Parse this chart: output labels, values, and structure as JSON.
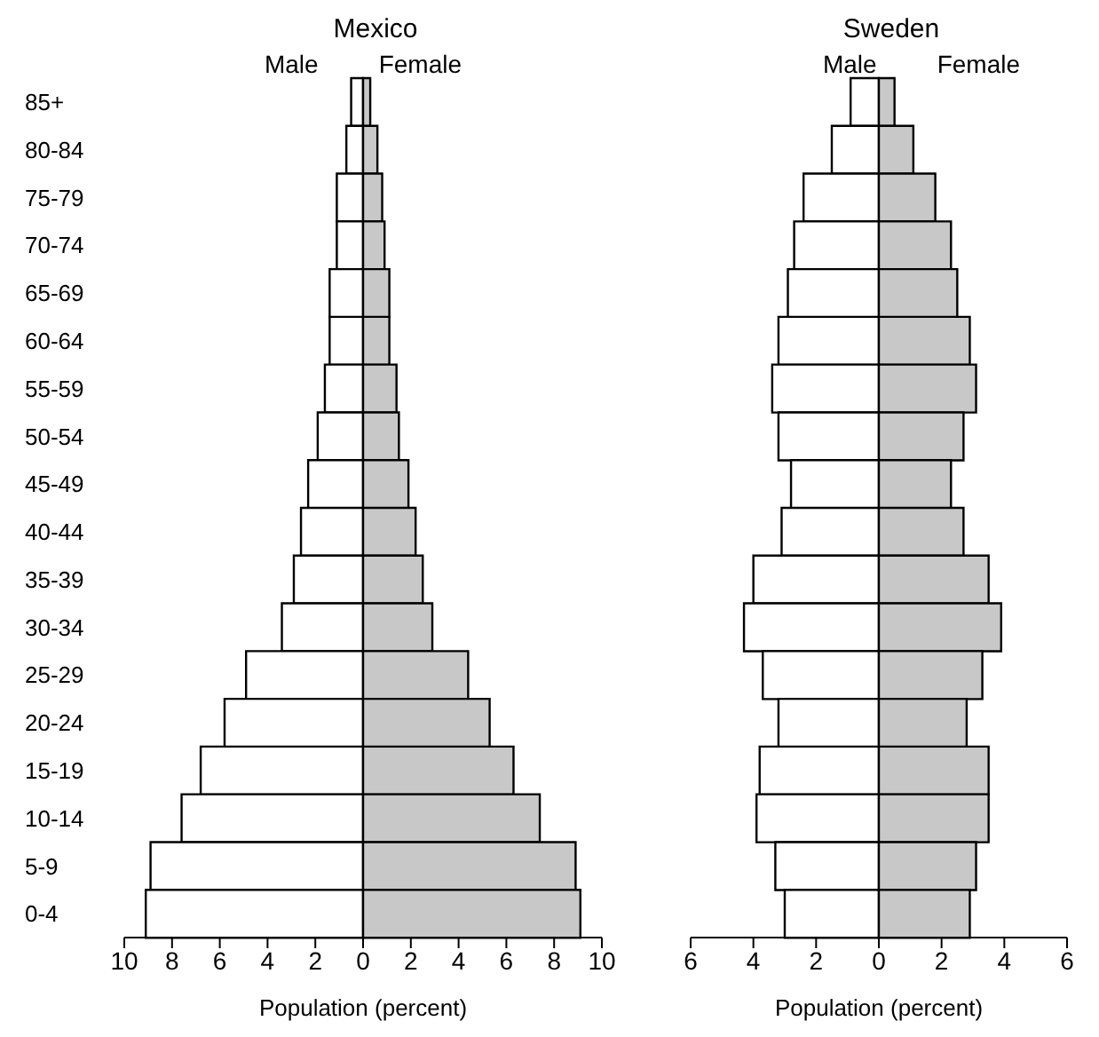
{
  "chart_data": [
    {
      "type": "bar",
      "orientation": "horizontal",
      "stacked": true,
      "title": "Mexico",
      "xlabel": "Population (percent)",
      "categories": [
        "85+",
        "80-84",
        "75-79",
        "70-74",
        "65-69",
        "60-64",
        "55-59",
        "50-54",
        "45-49",
        "40-44",
        "35-39",
        "30-34",
        "25-29",
        "20-24",
        "15-19",
        "10-14",
        "5-9",
        "0-4"
      ],
      "series": [
        {
          "name": "Male",
          "color": "#ffffff",
          "values": [
            -0.5,
            -0.7,
            -1.1,
            -1.1,
            -1.4,
            -1.4,
            -1.6,
            -1.9,
            -2.3,
            -2.6,
            -2.9,
            -3.4,
            -4.9,
            -5.8,
            -6.8,
            -7.6,
            -8.9,
            -9.1
          ]
        },
        {
          "name": "Female",
          "color": "#c8c8c8",
          "values": [
            0.3,
            0.6,
            0.8,
            0.9,
            1.1,
            1.1,
            1.4,
            1.5,
            1.9,
            2.2,
            2.5,
            2.9,
            4.4,
            5.3,
            6.3,
            7.4,
            8.9,
            9.1
          ]
        }
      ],
      "xlim": [
        -10,
        10
      ],
      "xticks": [
        {
          "value": -10,
          "label": "10"
        },
        {
          "value": -8,
          "label": "8"
        },
        {
          "value": -6,
          "label": "6"
        },
        {
          "value": -4,
          "label": "4"
        },
        {
          "value": -2,
          "label": "2"
        },
        0,
        2,
        4,
        6,
        8,
        10
      ],
      "legend": "top",
      "grid": false
    },
    {
      "type": "bar",
      "orientation": "horizontal",
      "title": "Sweden",
      "xlabel": "Population (percent)",
      "stacked": true,
      "categories": [
        null,
        null,
        null,
        null,
        null,
        null,
        null,
        null,
        null,
        null,
        null,
        null,
        null,
        null,
        null,
        null,
        null,
        null
      ],
      "series": [
        {
          "name": "Male",
          "color": "#ffffff",
          "values": [
            -0.9,
            -1.5,
            -2.4,
            -2.7,
            -2.9,
            -3.2,
            -3.4,
            -3.2,
            -2.8,
            -3.1,
            -4.0,
            -4.3,
            -3.7,
            -3.2,
            -3.8,
            -3.9,
            -3.3,
            -3.0
          ]
        },
        {
          "name": "Female",
          "color": "#c8c8c8",
          "values": [
            0.5,
            1.1,
            1.8,
            2.3,
            2.5,
            2.9,
            3.1,
            2.7,
            2.3,
            2.7,
            3.5,
            3.9,
            3.3,
            2.8,
            3.5,
            3.5,
            3.1,
            2.9
          ]
        }
      ],
      "xlim": [
        -6,
        6
      ],
      "xticks": [
        {
          "value": -6,
          "label": "6"
        },
        {
          "value": -4,
          "label": "4"
        },
        {
          "value": -2,
          "label": "2"
        },
        0,
        2,
        4,
        6
      ],
      "legend": "top",
      "grid": false,
      "tick_labels": "x"
    }
  ]
}
